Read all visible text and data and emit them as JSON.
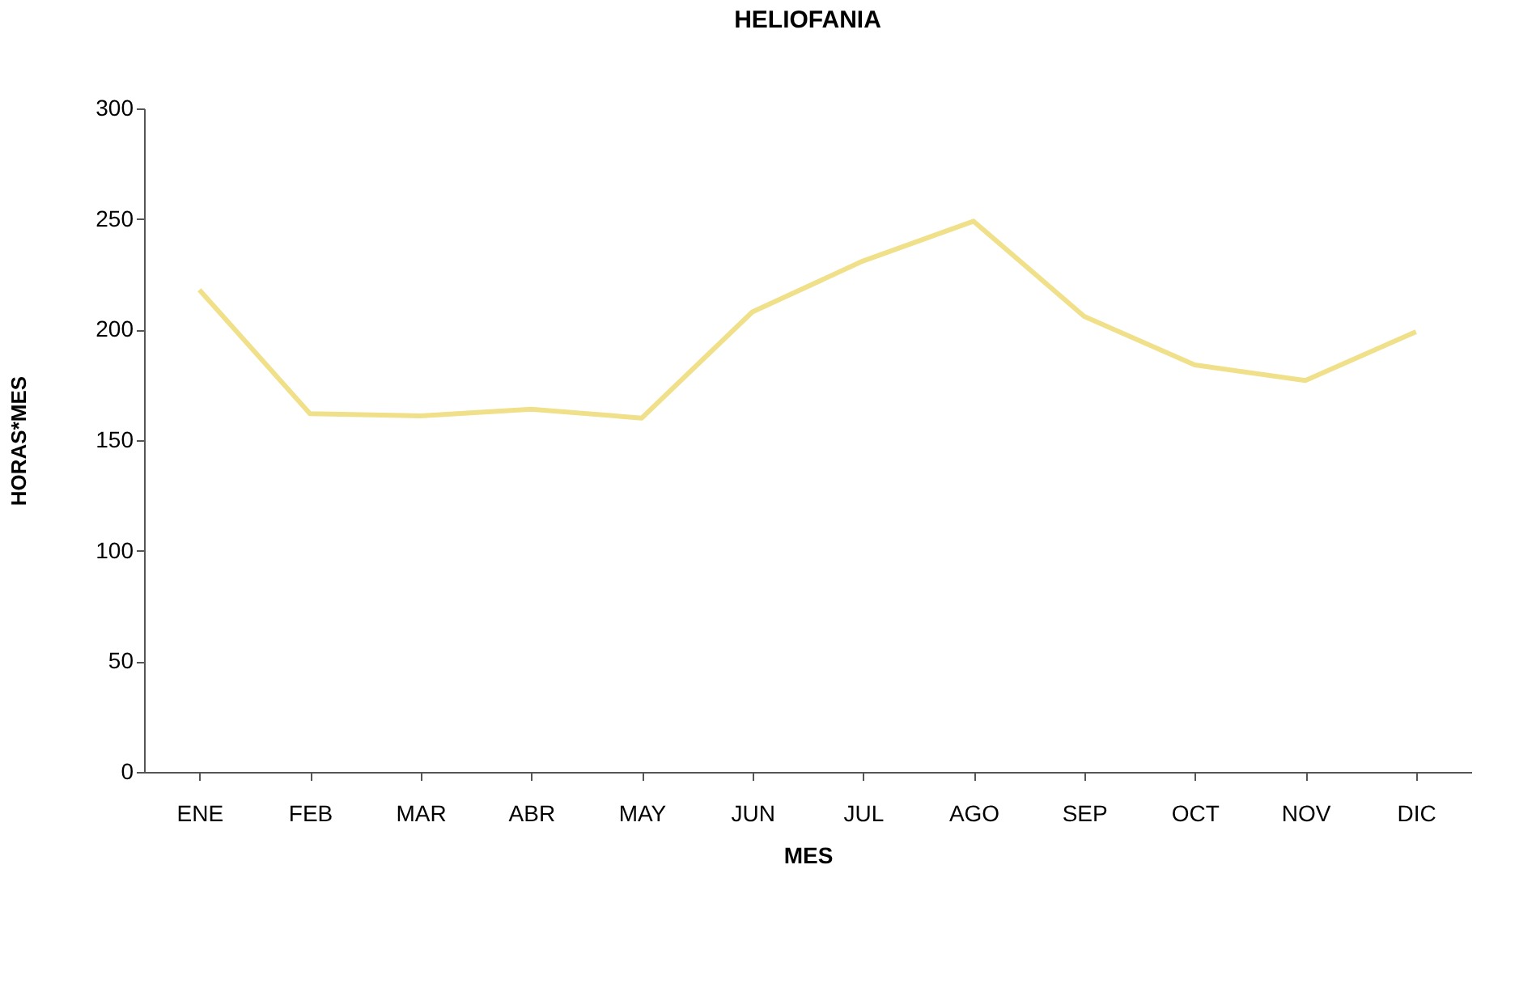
{
  "chart_data": {
    "type": "line",
    "title": "HELIOFANIA",
    "xlabel": "MES",
    "ylabel": "HORAS*MES",
    "categories": [
      "ENE",
      "FEB",
      "MAR",
      "ABR",
      "MAY",
      "JUN",
      "JUL",
      "AGO",
      "SEP",
      "OCT",
      "NOV",
      "DIC"
    ],
    "series": [
      {
        "color": "#f0e08a",
        "values": [
          218,
          162,
          161,
          164,
          160,
          208,
          231,
          249,
          206,
          184,
          177,
          199
        ]
      }
    ],
    "ylim": [
      0,
      300
    ],
    "yticks": [
      0,
      50,
      100,
      150,
      200,
      250,
      300
    ],
    "grid": false,
    "legend": false,
    "marker": "none",
    "line_style": "solid"
  }
}
